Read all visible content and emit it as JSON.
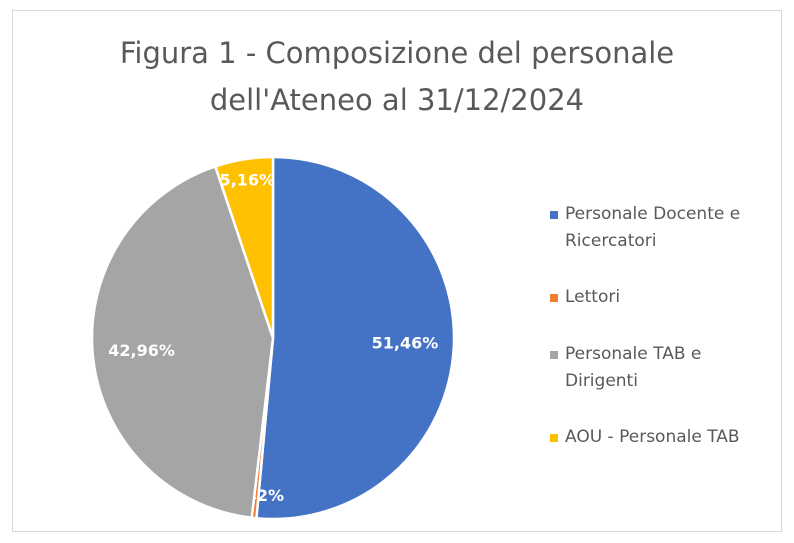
{
  "chart_data": {
    "type": "pie",
    "title": "Figura 1 - Composizione del personale dell'Ateneo al 31/12/2024",
    "categories": [
      "Personale Docente e Ricercatori",
      "Lettori",
      "Personale TAB e Dirigenti",
      "AOU - Personale TAB"
    ],
    "values": [
      51.46,
      0.42,
      42.96,
      5.16
    ],
    "value_labels": [
      "51,46%",
      "0,42%",
      "42,96%",
      "5,16%"
    ],
    "colors": [
      "#4472c4",
      "#ed7d31",
      "#a5a5a5",
      "#ffc000"
    ],
    "legend": "right"
  }
}
